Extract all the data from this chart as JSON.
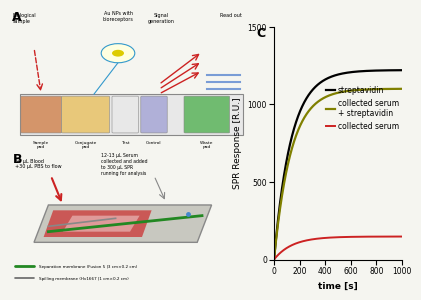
{
  "xlabel": "time [s]",
  "ylabel": "SPR Response [R.U.]",
  "xlim": [
    0,
    1000
  ],
  "ylim": [
    0,
    1500
  ],
  "xticks": [
    0,
    200,
    400,
    600,
    800,
    1000
  ],
  "yticks": [
    0,
    500,
    1000,
    1500
  ],
  "curves": [
    {
      "label": "streptavidin",
      "color": "#000000",
      "linewidth": 1.6,
      "plateau": 1220,
      "rise_rate": 0.0075
    },
    {
      "label": "collected serum\n+ streptavidin",
      "color": "#808000",
      "linewidth": 1.6,
      "plateau": 1100,
      "rise_rate": 0.0075
    },
    {
      "label": "collected serum",
      "color": "#cc2222",
      "linewidth": 1.4,
      "plateau": 148,
      "rise_rate": 0.007
    }
  ],
  "legend_fontsize": 5.5,
  "axis_label_fontsize": 6.5,
  "tick_fontsize": 5.5,
  "panel_label_fontsize": 9,
  "background_color": "#f5f5f0",
  "panel_A_label": "A",
  "panel_B_label": "B",
  "panel_C_label": "C",
  "fig_width": 4.0,
  "fig_height": 2.84,
  "panel_A_texts": {
    "au_nps": "Au NPs with\nbioreceptors",
    "biological": "Biological\nsample",
    "signal": "Signal\ngeneration",
    "readout": "Read out",
    "sample_pad": "Sample\npad",
    "conjugate": "Conjugate\npad",
    "test": "Test",
    "control": "Control",
    "waste": "Waste\npad"
  },
  "panel_B_texts": {
    "blood": "50 μL Blood\n+30 μL PBS to flow",
    "serum_text": "12-13 μL Serum\ncollected and added\nto 300 μL SPR\nrunning for analysis",
    "sep_mem": "Separation membrane (Fusion 5 |3 cm×0.2 cm)",
    "spill_mem": "Spilling membrane (Hv1667 |1 cm×0.2 cm)"
  },
  "strip_colors": [
    "#d4956a",
    "#e8c87a",
    "#e8e8e8",
    "#b0b0d8",
    "#70bb70"
  ],
  "strip_labels": [
    "Sample\npad",
    "Conjugate\npad",
    "Test",
    "Control",
    "Waste\npad"
  ]
}
